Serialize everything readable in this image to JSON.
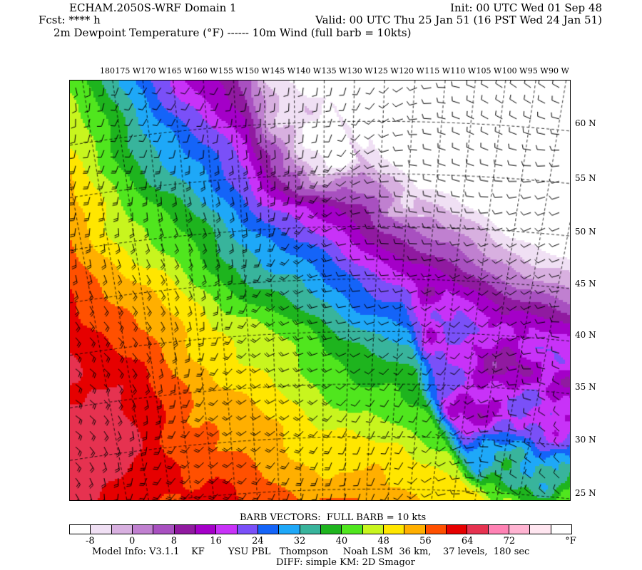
{
  "header": {
    "title": "ECHAM.2050S-WRF Domain 1",
    "init": "Init: 00 UTC Wed 01 Sep 48",
    "fcst": "Fcst: **** h",
    "valid": "Valid: 00 UTC Thu 25 Jan 51 (16 PST Wed 24 Jan 51)",
    "field": "2m Dewpoint Temperature (°F) ------ 10m Wind (full barb = 10kts)"
  },
  "map": {
    "lon_labels": [
      "180",
      "175 W",
      "170 W",
      "165 W",
      "160 W",
      "155 W",
      "150 W",
      "145 W",
      "140 W",
      "135 W",
      "130 W",
      "125 W",
      "120 W",
      "115 W",
      "110 W",
      "105 W",
      "100 W",
      "95 W",
      "90 W"
    ],
    "lat_labels": [
      "60 N",
      "55 N",
      "50 N",
      "45 N",
      "40 N",
      "35 N",
      "30 N",
      "25 N"
    ]
  },
  "colorbar": {
    "title": "BARB VECTORS:  FULL BARB = 10 kts",
    "colors": [
      "#ffffff",
      "#f0e0f4",
      "#d8b0e0",
      "#c080d0",
      "#a850c0",
      "#901aa0",
      "#a400c8",
      "#c832f8",
      "#7a50f8",
      "#1464f8",
      "#1ea8f8",
      "#38b49c",
      "#1eb41e",
      "#50e61e",
      "#c8f51e",
      "#ffe600",
      "#ffaf00",
      "#ff5000",
      "#e60000",
      "#e63250",
      "#ff82b4",
      "#ffb4d2",
      "#ffe6f0",
      "#ffffff"
    ],
    "labels": [
      "-8",
      "0",
      "8",
      "16",
      "24",
      "32",
      "40",
      "48",
      "56",
      "64",
      "72"
    ],
    "unit": "°F"
  },
  "footer": {
    "model_info": "Model Info: V3.1.1    KF        YSU PBL   Thompson     Noah LSM  36 km,    37 levels,  180 sec",
    "diff": "DIFF: simple KM: 2D Smagor"
  }
}
